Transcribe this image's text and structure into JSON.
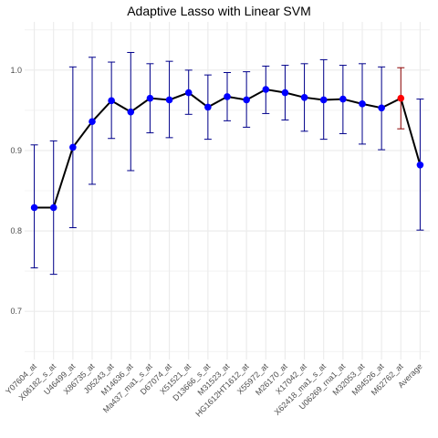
{
  "chart_data": {
    "type": "line",
    "title": "Adaptive Lasso with Linear SVM",
    "xlabel": "",
    "ylabel": "",
    "ylim": [
      0.64,
      1.06
    ],
    "yticks": [
      0.7,
      0.8,
      0.9,
      1.0
    ],
    "ytick_labels": [
      "0.7",
      "0.8",
      "0.9",
      "1.0"
    ],
    "grid": true,
    "categories": [
      "Y07604_at",
      "X06182_s_at",
      "U46499_at",
      "X86735_at",
      "J05243_at",
      "M14636_at",
      "Ma437_ma1_s_at",
      "D67074_at",
      "X51521_at",
      "D13666_s_at",
      "M31523_at",
      "HG1612HT1612_at",
      "X55972_at",
      "M26170_at",
      "X17042_at",
      "X62418_ma1_s_at",
      "U06269_rna1_at",
      "M32053_at",
      "M84526_at",
      "M62762_at",
      "Average"
    ],
    "values": [
      0.829,
      0.829,
      0.904,
      0.936,
      0.962,
      0.948,
      0.965,
      0.963,
      0.972,
      0.954,
      0.967,
      0.963,
      0.976,
      0.972,
      0.966,
      0.963,
      0.964,
      0.958,
      0.953,
      0.965,
      0.882
    ],
    "lower": [
      0.754,
      0.746,
      0.804,
      0.858,
      0.915,
      0.875,
      0.922,
      0.916,
      0.945,
      0.914,
      0.937,
      0.929,
      0.946,
      0.938,
      0.924,
      0.914,
      0.921,
      0.908,
      0.901,
      0.927,
      0.801
    ],
    "upper": [
      0.907,
      0.912,
      1.004,
      1.016,
      1.01,
      1.022,
      1.008,
      1.011,
      1.0,
      0.994,
      0.997,
      0.998,
      1.005,
      1.006,
      1.008,
      1.013,
      1.006,
      1.008,
      1.004,
      1.003,
      0.964
    ],
    "highlight_index": 19,
    "colors": {
      "points": "#0000ff",
      "errorbars": "#00008b",
      "line": "#000000",
      "highlight": "#ff0000",
      "highlight_errorbar": "#8b0000",
      "grid": "#ebebeb"
    }
  }
}
